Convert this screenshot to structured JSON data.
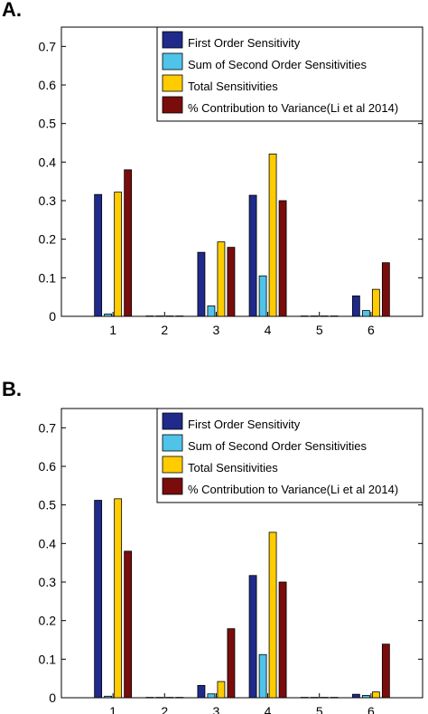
{
  "chart_data": [
    {
      "panel_label": "A.",
      "type": "bar",
      "categories": [
        "1",
        "2",
        "3",
        "4",
        "5",
        "6"
      ],
      "ylim": [
        0,
        0.75
      ],
      "yticks": [
        "0",
        "0.1",
        "0.2",
        "0.3",
        "0.4",
        "0.5",
        "0.6",
        "0.7"
      ],
      "legend_position": "top-right",
      "series": [
        {
          "name": "First Order Sensitivity",
          "color": "#1f2a8a",
          "values": [
            0.316,
            0.001,
            0.166,
            0.314,
            0.001,
            0.053
          ]
        },
        {
          "name": "Sum of Second Order Sensitivities",
          "color": "#4fc3e8",
          "values": [
            0.006,
            0.001,
            0.027,
            0.105,
            0.001,
            0.015
          ]
        },
        {
          "name": "Total Sensitivities",
          "color": "#ffcc00",
          "values": [
            0.322,
            0.001,
            0.193,
            0.421,
            0.001,
            0.07
          ]
        },
        {
          "name": "% Contribution to Variance(Li et al 2014)",
          "color": "#7a0c0c",
          "values": [
            0.38,
            0.001,
            0.179,
            0.3,
            0.001,
            0.139
          ]
        }
      ]
    },
    {
      "panel_label": "B.",
      "type": "bar",
      "categories": [
        "1",
        "2",
        "3",
        "4",
        "5",
        "6"
      ],
      "ylim": [
        0,
        0.75
      ],
      "yticks": [
        "0",
        "0.1",
        "0.2",
        "0.3",
        "0.4",
        "0.5",
        "0.6",
        "0.7"
      ],
      "legend_position": "top-right",
      "series": [
        {
          "name": "First Order Sensitivity",
          "color": "#1f2a8a",
          "values": [
            0.512,
            0.001,
            0.032,
            0.317,
            0.001,
            0.009
          ]
        },
        {
          "name": "Sum of Second Order Sensitivities",
          "color": "#4fc3e8",
          "values": [
            0.004,
            0.001,
            0.01,
            0.112,
            0.001,
            0.006
          ]
        },
        {
          "name": "Total Sensitivities",
          "color": "#ffcc00",
          "values": [
            0.516,
            0.001,
            0.042,
            0.429,
            0.001,
            0.015
          ]
        },
        {
          "name": "% Contribution to Variance(Li et al 2014)",
          "color": "#7a0c0c",
          "values": [
            0.38,
            0.001,
            0.179,
            0.3,
            0.001,
            0.139
          ]
        }
      ]
    }
  ]
}
